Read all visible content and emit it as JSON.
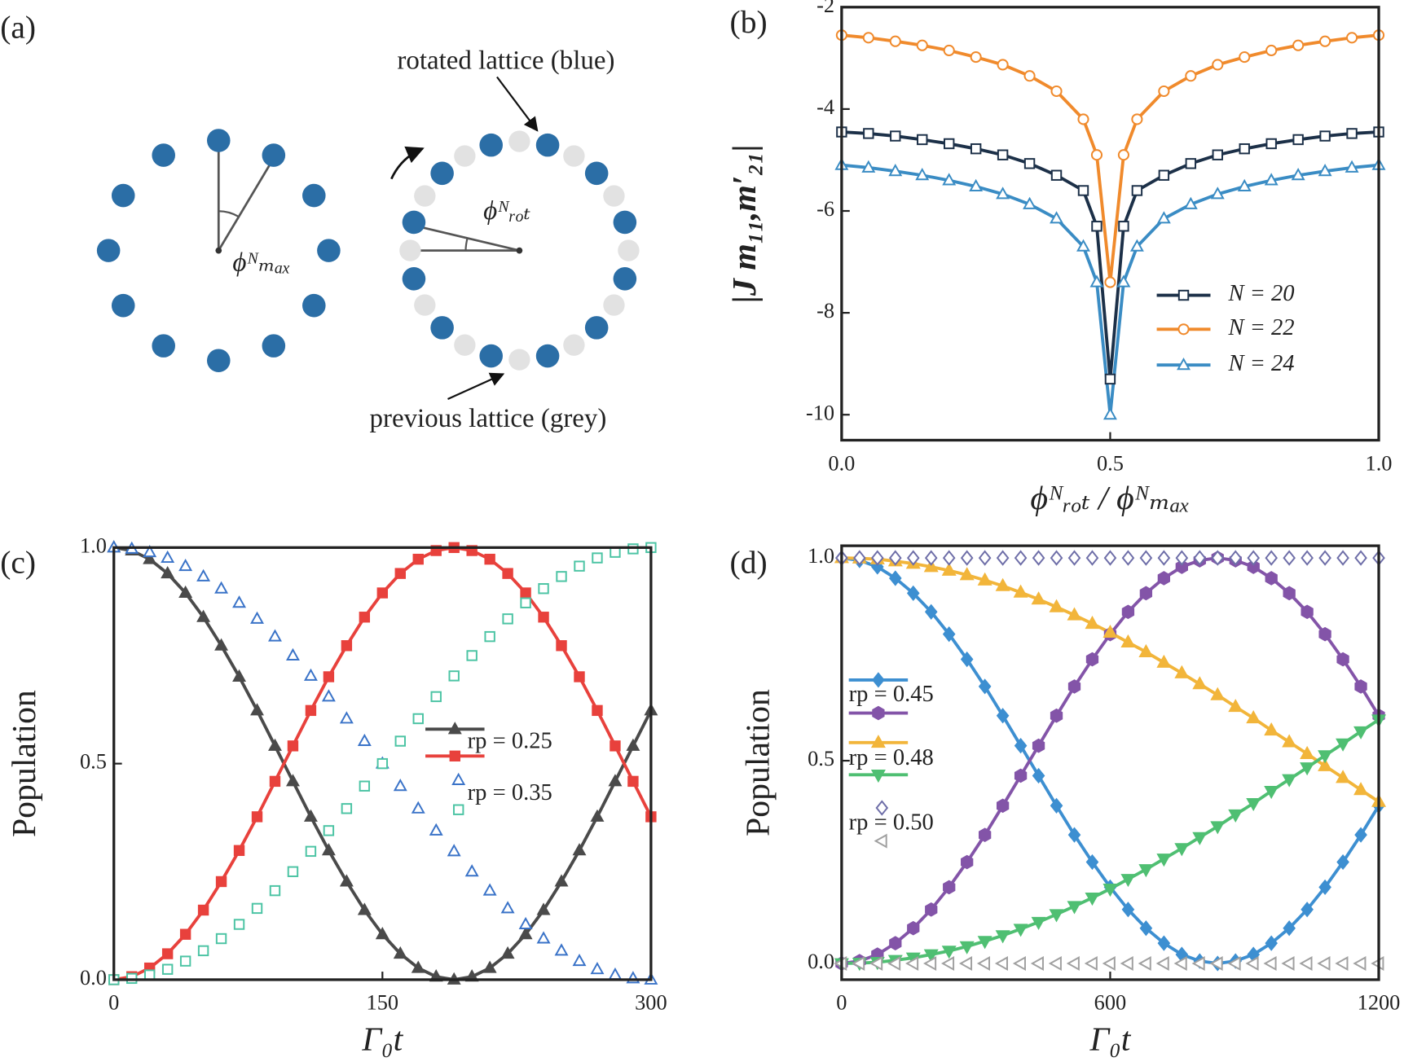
{
  "panel_labels": [
    "(a)",
    "(b)",
    "(c)",
    "(d)"
  ],
  "diagram": {
    "phi_max": "ϕᴺₘₐₓ",
    "phi_rot": "ϕᴺᵣₒₜ",
    "rotated_label": "rotated lattice (blue)",
    "previous_label": "previous lattice (grey)"
  },
  "chart_data": [
    {
      "type": "line",
      "y_label": "|J m₁₁,m′₂₁|",
      "x_label": "ϕᴺᵣₒₜ / ϕᴺₘₐₓ",
      "x": [
        0,
        0.05,
        0.1,
        0.15,
        0.2,
        0.25,
        0.3,
        0.35,
        0.4,
        0.45,
        0.475,
        0.5,
        0.525,
        0.55,
        0.6,
        0.65,
        0.7,
        0.75,
        0.8,
        0.85,
        0.9,
        0.95,
        1
      ],
      "series": [
        {
          "name": "N = 20",
          "color": "#1c3048",
          "marker": "square",
          "filled": false,
          "line": true,
          "values": [
            -4.45,
            -4.48,
            -4.53,
            -4.6,
            -4.68,
            -4.78,
            -4.9,
            -5.07,
            -5.3,
            -5.6,
            -6.3,
            -9.3,
            -6.3,
            -5.6,
            -5.3,
            -5.07,
            -4.9,
            -4.78,
            -4.68,
            -4.6,
            -4.53,
            -4.48,
            -4.45
          ]
        },
        {
          "name": "N = 22",
          "color": "#f08a2c",
          "marker": "circle",
          "filled": false,
          "line": true,
          "values": [
            -2.55,
            -2.6,
            -2.67,
            -2.75,
            -2.85,
            -2.98,
            -3.13,
            -3.35,
            -3.65,
            -4.2,
            -4.9,
            -7.4,
            -4.9,
            -4.2,
            -3.65,
            -3.35,
            -3.13,
            -2.98,
            -2.85,
            -2.75,
            -2.67,
            -2.6,
            -2.55
          ]
        },
        {
          "name": "N = 24",
          "color": "#3a8cc4",
          "marker": "triangle",
          "filled": false,
          "line": true,
          "values": [
            -5.1,
            -5.15,
            -5.22,
            -5.3,
            -5.4,
            -5.52,
            -5.67,
            -5.87,
            -6.15,
            -6.7,
            -7.4,
            -10,
            -7.4,
            -6.7,
            -6.15,
            -5.87,
            -5.67,
            -5.52,
            -5.4,
            -5.3,
            -5.22,
            -5.15,
            -5.1
          ]
        }
      ],
      "xlim": [
        0,
        1
      ],
      "ylim": [
        -10.5,
        -2
      ],
      "xticks": [
        {
          "value": 0,
          "label": "0.0"
        },
        {
          "value": 0.5,
          "label": "0.5"
        },
        {
          "value": 1,
          "label": "1.0"
        }
      ],
      "yticks": [
        -2,
        -4,
        -6,
        -8,
        -10
      ]
    },
    {
      "type": "line",
      "y_label": "Population",
      "x_label": "Γ₀t",
      "x": [
        0,
        10,
        20,
        30,
        40,
        50,
        60,
        70,
        80,
        90,
        100,
        110,
        120,
        130,
        140,
        150,
        160,
        170,
        180,
        190,
        200,
        210,
        220,
        230,
        240,
        250,
        260,
        270,
        280,
        290,
        300
      ],
      "legend": [
        "rp = 0.25",
        "rp = 0.35"
      ],
      "series": [
        {
          "color": "#4a4a4a",
          "marker": "triangle",
          "filled": true,
          "line": true,
          "values": [
            1,
            0.993,
            0.973,
            0.94,
            0.895,
            0.839,
            0.773,
            0.701,
            0.623,
            0.541,
            0.459,
            0.377,
            0.299,
            0.227,
            0.161,
            0.105,
            0.06,
            0.027,
            0.007,
            0,
            0.007,
            0.027,
            0.06,
            0.105,
            0.161,
            0.227,
            0.299,
            0.377,
            0.459,
            0.541,
            0.623
          ]
        },
        {
          "color": "#e8413c",
          "marker": "square",
          "filled": true,
          "line": true,
          "values": [
            0,
            0.007,
            0.027,
            0.06,
            0.105,
            0.161,
            0.227,
            0.299,
            0.377,
            0.459,
            0.541,
            0.623,
            0.701,
            0.773,
            0.839,
            0.895,
            0.94,
            0.973,
            0.993,
            1,
            0.993,
            0.973,
            0.94,
            0.895,
            0.839,
            0.773,
            0.701,
            0.623,
            0.541,
            0.459,
            0.377
          ]
        },
        {
          "color": "#3a73c8",
          "marker": "triangle",
          "filled": false,
          "line": false,
          "values": [
            1,
            0.997,
            0.989,
            0.976,
            0.957,
            0.933,
            0.905,
            0.872,
            0.835,
            0.794,
            0.75,
            0.703,
            0.655,
            0.604,
            0.552,
            0.5,
            0.448,
            0.396,
            0.345,
            0.297,
            0.25,
            0.206,
            0.165,
            0.128,
            0.095,
            0.067,
            0.043,
            0.024,
            0.011,
            0.003,
            0
          ]
        },
        {
          "color": "#4cc4a4",
          "marker": "square",
          "filled": false,
          "line": false,
          "values": [
            0,
            0.003,
            0.011,
            0.024,
            0.043,
            0.067,
            0.095,
            0.128,
            0.165,
            0.206,
            0.25,
            0.297,
            0.345,
            0.396,
            0.448,
            0.5,
            0.552,
            0.604,
            0.655,
            0.703,
            0.75,
            0.794,
            0.835,
            0.872,
            0.905,
            0.933,
            0.957,
            0.976,
            0.989,
            0.997,
            1
          ]
        }
      ],
      "xlim": [
        0,
        300
      ],
      "ylim": [
        0,
        1
      ],
      "xticks": [
        0,
        150,
        300
      ],
      "yticks": [
        {
          "value": 0,
          "label": "0.0"
        },
        {
          "value": 0.5,
          "label": "0.5"
        },
        {
          "value": 1,
          "label": "1.0"
        }
      ]
    },
    {
      "type": "line",
      "y_label": "Population",
      "x_label": "Γ₀t",
      "x": [
        0,
        40,
        80,
        120,
        160,
        200,
        240,
        280,
        320,
        360,
        400,
        440,
        480,
        520,
        560,
        600,
        640,
        680,
        720,
        760,
        800,
        840,
        880,
        920,
        960,
        1000,
        1040,
        1080,
        1120,
        1160,
        1200
      ],
      "legend": [
        "rp = 0.45",
        "rp = 0.48",
        "rp = 0.50"
      ],
      "series": [
        {
          "color": "#3d8fd1",
          "marker": "diamond",
          "filled": true,
          "line": true,
          "values": [
            1,
            0.994,
            0.978,
            0.95,
            0.913,
            0.867,
            0.812,
            0.75,
            0.683,
            0.611,
            0.537,
            0.463,
            0.389,
            0.317,
            0.25,
            0.188,
            0.133,
            0.087,
            0.05,
            0.022,
            0.006,
            0,
            0.006,
            0.022,
            0.05,
            0.087,
            0.133,
            0.188,
            0.25,
            0.317,
            0.389
          ]
        },
        {
          "color": "#8354a8",
          "marker": "hexagon",
          "filled": true,
          "line": true,
          "values": [
            0,
            0.006,
            0.022,
            0.05,
            0.087,
            0.133,
            0.188,
            0.25,
            0.317,
            0.389,
            0.463,
            0.537,
            0.611,
            0.683,
            0.75,
            0.812,
            0.867,
            0.913,
            0.95,
            0.978,
            0.994,
            1,
            0.994,
            0.978,
            0.95,
            0.913,
            0.867,
            0.812,
            0.75,
            0.683,
            0.611
          ]
        },
        {
          "color": "#f2b53a",
          "marker": "triangle",
          "filled": true,
          "line": true,
          "values": [
            1,
            0.999,
            0.997,
            0.992,
            0.986,
            0.978,
            0.969,
            0.958,
            0.945,
            0.931,
            0.915,
            0.898,
            0.879,
            0.859,
            0.838,
            0.816,
            0.792,
            0.768,
            0.742,
            0.716,
            0.689,
            0.662,
            0.633,
            0.605,
            0.575,
            0.546,
            0.517,
            0.487,
            0.458,
            0.428,
            0.399
          ]
        },
        {
          "color": "#4fbf72",
          "marker": "triangle-down",
          "filled": true,
          "line": true,
          "values": [
            0,
            0.001,
            0.003,
            0.008,
            0.014,
            0.022,
            0.031,
            0.042,
            0.055,
            0.069,
            0.085,
            0.102,
            0.121,
            0.141,
            0.162,
            0.184,
            0.208,
            0.232,
            0.258,
            0.284,
            0.311,
            0.338,
            0.367,
            0.395,
            0.425,
            0.454,
            0.483,
            0.513,
            0.542,
            0.572,
            0.601
          ]
        },
        {
          "color": "#6e6ea8",
          "marker": "diamond",
          "filled": false,
          "line": false,
          "values": [
            1,
            1,
            1,
            1,
            1,
            1,
            1,
            1,
            1,
            1,
            1,
            1,
            1,
            1,
            1,
            1,
            1,
            1,
            1,
            1,
            1,
            1,
            1,
            1,
            1,
            1,
            1,
            1,
            1,
            1,
            1
          ]
        },
        {
          "color": "#a0a0a0",
          "marker": "triangle-left",
          "filled": false,
          "line": false,
          "values": [
            0,
            0,
            0,
            0,
            0,
            0,
            0,
            0,
            0,
            0,
            0,
            0,
            0,
            0,
            0,
            0,
            0,
            0,
            0,
            0,
            0,
            0,
            0,
            0,
            0,
            0,
            0,
            0,
            0,
            0,
            0
          ]
        }
      ],
      "xlim": [
        0,
        1200
      ],
      "ylim": [
        -0.04,
        1.03
      ],
      "xticks": [
        0,
        600,
        1200
      ],
      "yticks": [
        {
          "value": 0,
          "label": "0.0"
        },
        {
          "value": 0.5,
          "label": "0.5"
        },
        {
          "value": 1,
          "label": "1.0"
        }
      ]
    }
  ]
}
